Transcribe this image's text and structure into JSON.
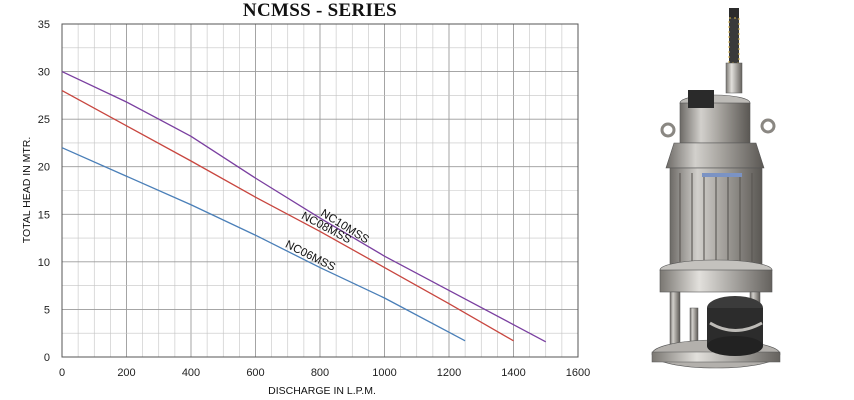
{
  "chart_data": {
    "type": "line",
    "title": "NCMSS - SERIES",
    "xlabel": "DISCHARGE IN L.P.M.",
    "ylabel": "TOTAL HEAD IN MTR.",
    "xlim": [
      0,
      1600
    ],
    "ylim": [
      0,
      35
    ],
    "xticks": [
      0,
      200,
      400,
      600,
      800,
      1000,
      1200,
      1400,
      1600
    ],
    "yticks": [
      0,
      5,
      10,
      15,
      20,
      25,
      30,
      35
    ],
    "grid": true,
    "legend": "none",
    "series": [
      {
        "name": "NC10MSS",
        "color": "#7a3fa0",
        "x": [
          0,
          200,
          400,
          600,
          800,
          1000,
          1200,
          1400,
          1500
        ],
        "y": [
          30,
          26.8,
          23.2,
          18.8,
          14.6,
          10.6,
          7.0,
          3.4,
          1.6
        ]
      },
      {
        "name": "NC08MSS",
        "color": "#c8463f",
        "x": [
          0,
          200,
          400,
          600,
          800,
          1000,
          1200,
          1400
        ],
        "y": [
          28,
          24.3,
          20.6,
          16.8,
          13.2,
          9.4,
          5.6,
          1.7
        ]
      },
      {
        "name": "NC06MSS",
        "color": "#4a7fb8",
        "x": [
          0,
          200,
          400,
          600,
          800,
          1000,
          1250
        ],
        "y": [
          22,
          19.0,
          16.0,
          12.8,
          9.4,
          6.2,
          1.7
        ]
      }
    ]
  }
}
